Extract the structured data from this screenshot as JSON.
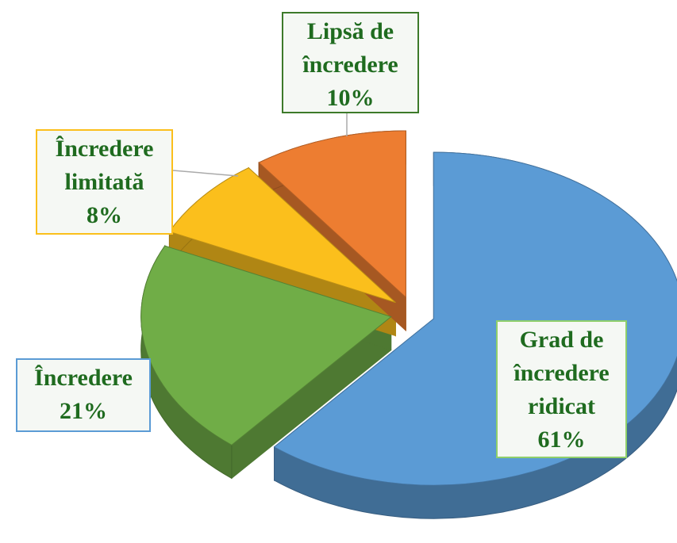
{
  "chart_data": {
    "type": "pie",
    "categories": [
      "Grad de încredere ridicat",
      "Încredere",
      "Încredere limitată",
      "Lipsă de încredere"
    ],
    "values": [
      61,
      21,
      8,
      10
    ],
    "value_labels": [
      "61%",
      "21%",
      "8%",
      "10%"
    ],
    "colors": [
      "#5b9bd5",
      "#70ad47",
      "#fbbf1c",
      "#ed7d31"
    ]
  }
}
